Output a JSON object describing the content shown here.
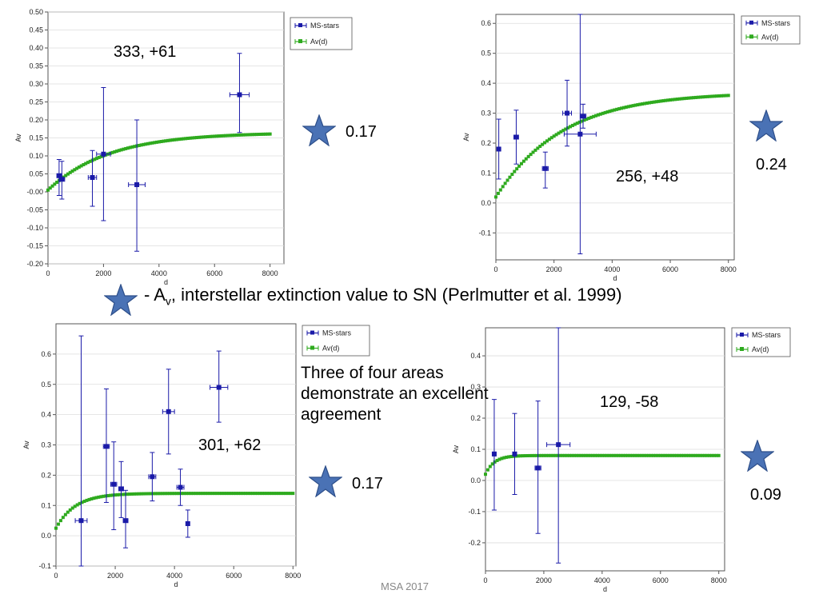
{
  "caption": {
    "prefix": "- A",
    "sub": "v",
    "rest": ", interstellar extinction value to SN (Perlmutter et al. 1999)"
  },
  "note": "Three of four areas demonstrate an excellent agreement",
  "footer": "MSA 2017",
  "colors": {
    "ms_stars": "#1a1aa8",
    "av_curve": "#2eaa1e",
    "star": "#4a72b5",
    "axis": "#555555"
  },
  "star_icon": "star-icon",
  "chart_data": [
    {
      "type": "scatter",
      "area_label": "333, +61",
      "av_value": "0.17",
      "xlabel": "d",
      "ylabel": "Av",
      "xlim": [
        0,
        8500
      ],
      "ylim": [
        -0.2,
        0.5
      ],
      "xticks": [
        "0",
        "2000",
        "4000",
        "6000",
        "8000"
      ],
      "yticks": [
        "-0.20",
        "-0.15",
        "-0.10",
        "-0.05",
        "-0.00",
        "0.05",
        "0.10",
        "0.15",
        "0.20",
        "0.25",
        "0.30",
        "0.35",
        "0.40",
        "0.45",
        "0.50"
      ],
      "legend": [
        "MS-stars",
        "Av(d)"
      ],
      "legend_position": "top-right",
      "ms_stars": [
        {
          "x": 400,
          "y": 0.045,
          "ylo": -0.01,
          "yhi": 0.09,
          "xerr": 80
        },
        {
          "x": 500,
          "y": 0.035,
          "ylo": -0.02,
          "yhi": 0.085,
          "xerr": 100
        },
        {
          "x": 1600,
          "y": 0.04,
          "ylo": -0.04,
          "yhi": 0.115,
          "xerr": 150
        },
        {
          "x": 2000,
          "y": 0.105,
          "ylo": -0.08,
          "yhi": 0.29,
          "xerr": 250
        },
        {
          "x": 3200,
          "y": 0.02,
          "ylo": -0.165,
          "yhi": 0.2,
          "xerr": 300
        },
        {
          "x": 6900,
          "y": 0.27,
          "ylo": 0.165,
          "yhi": 0.385,
          "xerr": 350
        }
      ],
      "av_curve": {
        "a0": 0.005,
        "asat": 0.165,
        "scale": 2200
      }
    },
    {
      "type": "scatter",
      "area_label": "256, +48",
      "av_value": "0.24",
      "xlabel": "d",
      "ylabel": "Av",
      "xlim": [
        0,
        8200
      ],
      "ylim": [
        -0.19,
        0.63
      ],
      "xticks": [
        "0",
        "2000",
        "4000",
        "6000",
        "8000"
      ],
      "yticks": [
        "-0.1",
        "0.0",
        "0.1",
        "0.2",
        "0.3",
        "0.4",
        "0.5",
        "0.6"
      ],
      "legend": [
        "MS-stars",
        "Av(d)"
      ],
      "legend_position": "top-right",
      "ms_stars": [
        {
          "x": 100,
          "y": 0.18,
          "ylo": 0.08,
          "yhi": 0.28,
          "xerr": 50
        },
        {
          "x": 700,
          "y": 0.22,
          "ylo": 0.13,
          "yhi": 0.31,
          "xerr": 80
        },
        {
          "x": 1700,
          "y": 0.115,
          "ylo": 0.05,
          "yhi": 0.17,
          "xerr": 100
        },
        {
          "x": 2450,
          "y": 0.3,
          "ylo": 0.19,
          "yhi": 0.41,
          "xerr": 150
        },
        {
          "x": 2900,
          "y": 0.23,
          "ylo": -0.17,
          "yhi": 0.63,
          "xerr": 550
        },
        {
          "x": 3000,
          "y": 0.29,
          "ylo": 0.25,
          "yhi": 0.33,
          "xerr": 100
        }
      ],
      "av_curve": {
        "a0": 0.02,
        "asat": 0.37,
        "scale": 2300
      }
    },
    {
      "type": "scatter",
      "area_label": "301, +62",
      "av_value": "0.17",
      "xlabel": "d",
      "ylabel": "Av",
      "xlim": [
        0,
        8100
      ],
      "ylim": [
        -0.1,
        0.7
      ],
      "xticks": [
        "0",
        "2000",
        "4000",
        "6000",
        "8000"
      ],
      "yticks": [
        "-0.1",
        "0.0",
        "0.1",
        "0.2",
        "0.3",
        "0.4",
        "0.5",
        "0.6"
      ],
      "legend": [
        "MS-stars",
        "Av(d)"
      ],
      "legend_position": "top-right",
      "ms_stars": [
        {
          "x": 850,
          "y": 0.05,
          "ylo": -0.1,
          "yhi": 0.66,
          "xerr": 200
        },
        {
          "x": 1700,
          "y": 0.295,
          "ylo": 0.11,
          "yhi": 0.485,
          "xerr": 100
        },
        {
          "x": 1950,
          "y": 0.17,
          "ylo": 0.02,
          "yhi": 0.31,
          "xerr": 100
        },
        {
          "x": 2200,
          "y": 0.155,
          "ylo": 0.06,
          "yhi": 0.245,
          "xerr": 80
        },
        {
          "x": 2350,
          "y": 0.05,
          "ylo": -0.04,
          "yhi": 0.15,
          "xerr": 80
        },
        {
          "x": 3250,
          "y": 0.195,
          "ylo": 0.115,
          "yhi": 0.275,
          "xerr": 120
        },
        {
          "x": 3800,
          "y": 0.41,
          "ylo": 0.27,
          "yhi": 0.55,
          "xerr": 200
        },
        {
          "x": 4200,
          "y": 0.16,
          "ylo": 0.1,
          "yhi": 0.22,
          "xerr": 120
        },
        {
          "x": 4450,
          "y": 0.04,
          "ylo": -0.005,
          "yhi": 0.085,
          "xerr": 50
        },
        {
          "x": 5500,
          "y": 0.49,
          "ylo": 0.375,
          "yhi": 0.61,
          "xerr": 300
        }
      ],
      "av_curve": {
        "a0": 0.025,
        "asat": 0.14,
        "scale": 650
      }
    },
    {
      "type": "scatter",
      "area_label": "129, -58",
      "av_value": "0.09",
      "xlabel": "d",
      "ylabel": "Av",
      "xlim": [
        0,
        8200
      ],
      "ylim": [
        -0.29,
        0.49
      ],
      "xticks": [
        "0",
        "2000",
        "4000",
        "6000",
        "8000"
      ],
      "yticks": [
        "-0.2",
        "-0.1",
        "0.0",
        "0.1",
        "0.2",
        "0.3",
        "0.4"
      ],
      "legend": [
        "MS-stars",
        "Av(d)"
      ],
      "legend_position": "top-right",
      "ms_stars": [
        {
          "x": 300,
          "y": 0.085,
          "ylo": -0.095,
          "yhi": 0.26,
          "xerr": 50
        },
        {
          "x": 1000,
          "y": 0.085,
          "ylo": -0.045,
          "yhi": 0.215,
          "xerr": 60
        },
        {
          "x": 1800,
          "y": 0.04,
          "ylo": -0.17,
          "yhi": 0.255,
          "xerr": 100
        },
        {
          "x": 2500,
          "y": 0.115,
          "ylo": -0.265,
          "yhi": 0.49,
          "xerr": 400
        }
      ],
      "av_curve": {
        "a0": 0.02,
        "asat": 0.08,
        "scale": 300
      }
    }
  ]
}
